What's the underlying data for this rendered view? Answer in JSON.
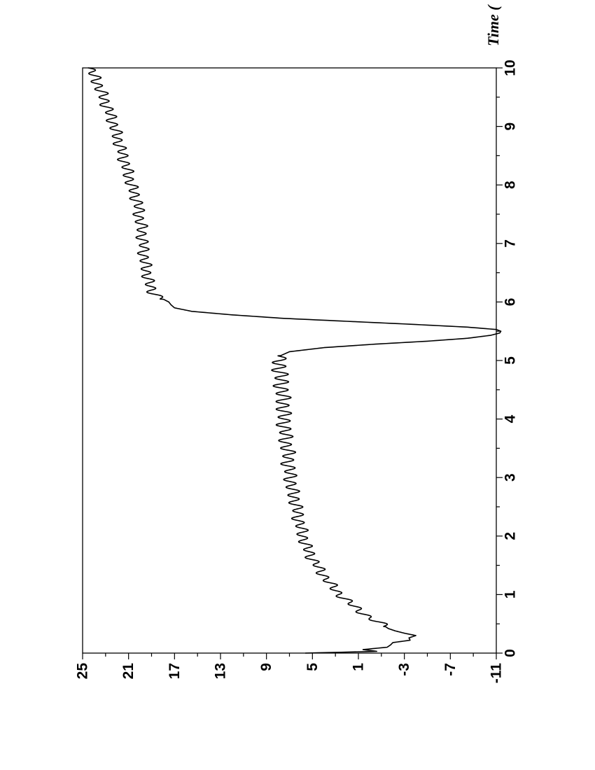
{
  "chart_data": {
    "type": "line",
    "orientation": "rotated 90 degrees counter-clockwise",
    "title": "",
    "xlabel": "Time (",
    "ylabel": "",
    "xlim": [
      0,
      10
    ],
    "ylim": [
      -11,
      25
    ],
    "x_ticks": [
      0,
      1,
      2,
      3,
      4,
      5,
      6,
      7,
      8,
      9,
      10
    ],
    "y_ticks": [
      -11,
      -7,
      -3,
      1,
      5,
      9,
      13,
      17,
      21,
      25
    ],
    "grid": false,
    "legend": "none",
    "line_color": "#000000",
    "series": [
      {
        "x": [
          0,
          0.03,
          0.06,
          0.1,
          0.14,
          0.18,
          0.22,
          0.26,
          0.3,
          0.34,
          0.38,
          0.42,
          0.5,
          0.6,
          0.7,
          0.8,
          0.9,
          1.0,
          1.1,
          1.2,
          1.3,
          1.4,
          1.5,
          1.6,
          1.7,
          1.8,
          1.9,
          2.0,
          2.2,
          2.4,
          2.6,
          2.8,
          3.0,
          3.2,
          3.4,
          3.6,
          3.8,
          4.0,
          4.2,
          4.4,
          4.6,
          4.8,
          5.0,
          5.08,
          5.15,
          5.22,
          5.28,
          5.33,
          5.38,
          5.43,
          5.47,
          5.5,
          5.53,
          5.57,
          5.62,
          5.67,
          5.72,
          5.78,
          5.84,
          5.9,
          5.95,
          6.0,
          6.05,
          6.1,
          6.2,
          6.3,
          6.4,
          6.5,
          6.7,
          6.9,
          7.1,
          7.3,
          7.5,
          7.7,
          7.9,
          8.1,
          8.3,
          8.5,
          8.7,
          8.9,
          9.1,
          9.3,
          9.5,
          9.7,
          9.9,
          10.0
        ],
        "y": [
          5.6,
          -0.6,
          0.6,
          -1.5,
          -1.8,
          -2.0,
          -3.5,
          -3.4,
          -4.0,
          -3.0,
          -2.2,
          -1.6,
          -1.0,
          0.0,
          0.7,
          1.4,
          2.0,
          2.6,
          3.1,
          3.5,
          3.9,
          4.3,
          4.6,
          5.0,
          5.2,
          5.5,
          5.7,
          5.8,
          6.1,
          6.3,
          6.5,
          6.8,
          6.9,
          7.1,
          7.1,
          7.3,
          7.4,
          7.5,
          7.5,
          7.6,
          7.7,
          7.8,
          7.9,
          7.8,
          7.0,
          4.0,
          -0.5,
          -5.0,
          -8.5,
          -10.5,
          -11.3,
          -11.4,
          -11.0,
          -8.5,
          -3.5,
          2.0,
          7.5,
          12.0,
          15.5,
          17.0,
          17.3,
          17.5,
          18.0,
          18.5,
          19.0,
          19.2,
          19.3,
          19.4,
          19.6,
          19.7,
          19.8,
          19.9,
          20.1,
          20.2,
          20.6,
          20.9,
          21.2,
          21.5,
          21.8,
          22.1,
          22.4,
          22.8,
          23.2,
          23.6,
          24.1,
          24.4
        ]
      }
    ]
  }
}
